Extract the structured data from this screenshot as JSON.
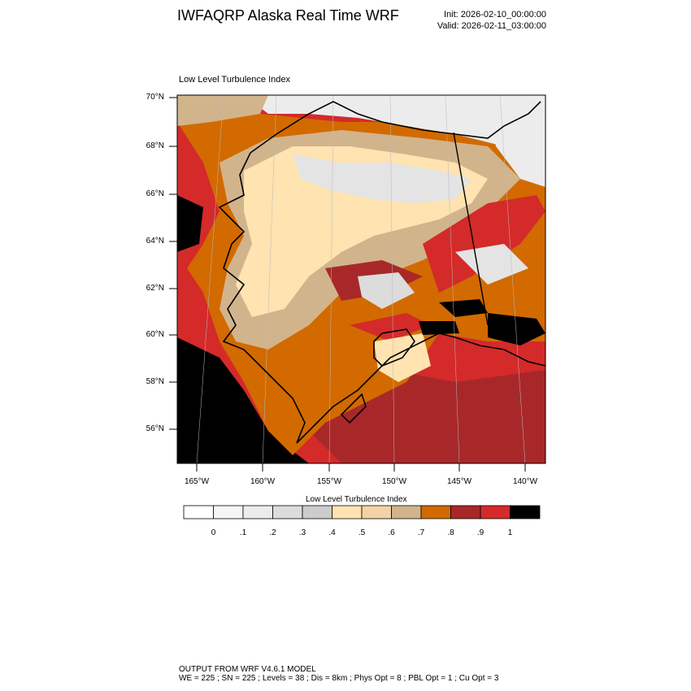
{
  "header": {
    "title": "IWFAQRP Alaska Real Time WRF",
    "init": "Init: 2026-02-10_00:00:00",
    "valid": "Valid: 2026-02-11_03:00:00"
  },
  "map": {
    "title": "Low Level Turbulence Index",
    "lat_labels": [
      "70°N",
      "68°N",
      "66°N",
      "64°N",
      "62°N",
      "60°N",
      "58°N",
      "56°N"
    ],
    "lon_labels": [
      "165°W",
      "160°W",
      "155°W",
      "150°W",
      "145°W",
      "140°W"
    ]
  },
  "colorbar": {
    "title": "Low Level Turbulence Index",
    "labels": [
      "0",
      ".1",
      ".2",
      ".3",
      ".4",
      ".5",
      ".6",
      ".7",
      ".8",
      ".9",
      "1"
    ],
    "colors": [
      "#ffffff",
      "#f6f6f6",
      "#ececec",
      "#dcdcdc",
      "#cccccc",
      "#ffe3b0",
      "#f3d3a6",
      "#d2b48c",
      "#d26a00",
      "#a8282a",
      "#d42a2a",
      "#000000"
    ]
  },
  "footer": {
    "line1": "OUTPUT FROM WRF V4.6.1 MODEL",
    "line2": "WE = 225 ; SN = 225 ; Levels = 38 ; Dis = 8km ; Phys Opt = 8 ; PBL Opt = 1 ; Cu Opt = 3"
  }
}
